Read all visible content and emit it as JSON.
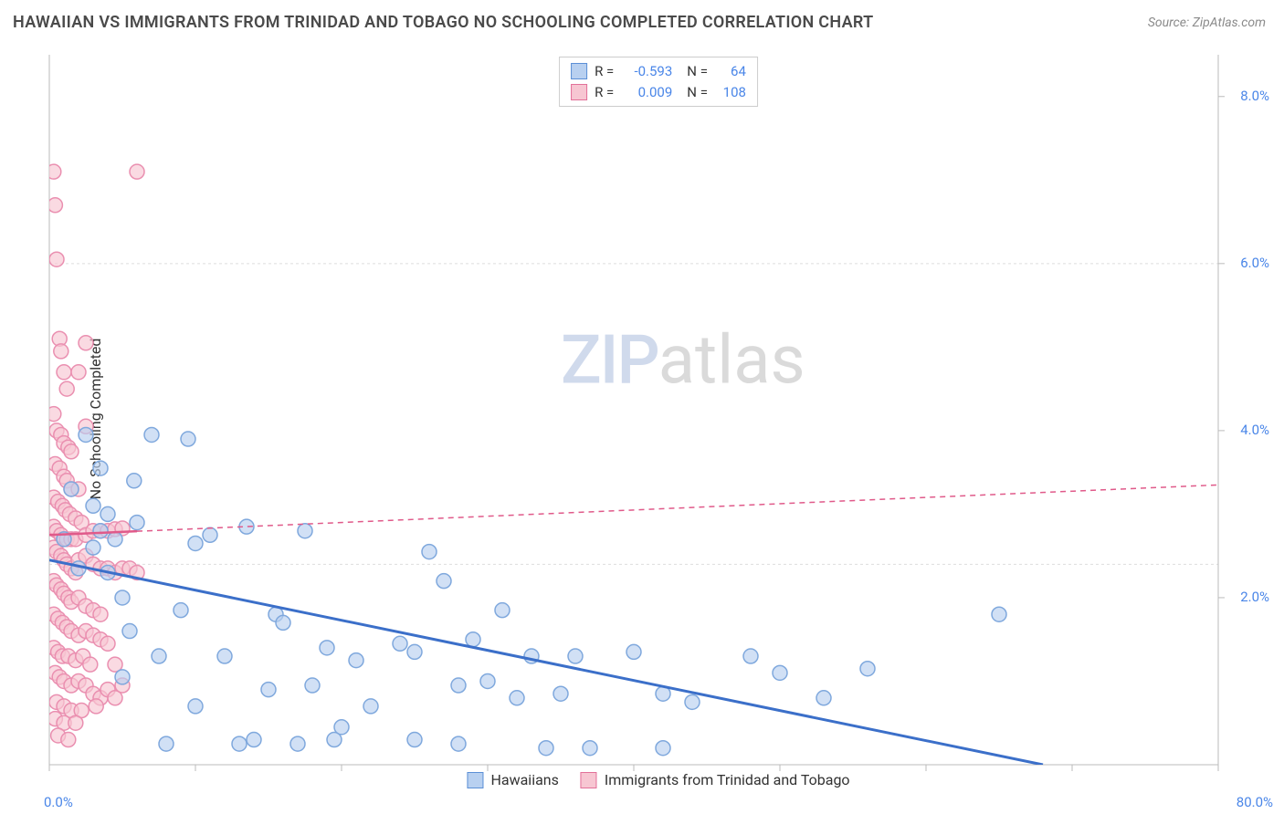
{
  "header": {
    "title": "HAWAIIAN VS IMMIGRANTS FROM TRINIDAD AND TOBAGO NO SCHOOLING COMPLETED CORRELATION CHART",
    "source": "Source: ZipAtlas.com"
  },
  "chart": {
    "type": "scatter",
    "ylabel": "No Schooling Completed",
    "xlim": [
      0,
      80
    ],
    "ylim": [
      0,
      8.5
    ],
    "x_ticks": [
      0,
      10,
      20,
      30,
      40,
      50,
      60,
      70,
      80
    ],
    "y_gridlines": [
      2.4,
      6.0
    ],
    "y_labels": [
      {
        "val": 2.0,
        "text": "2.0%"
      },
      {
        "val": 4.0,
        "text": "4.0%"
      },
      {
        "val": 6.0,
        "text": "6.0%"
      },
      {
        "val": 8.0,
        "text": "8.0%"
      }
    ],
    "x_axis_labels": {
      "left": "0.0%",
      "right": "80.0%"
    },
    "background_color": "#ffffff",
    "grid_color": "#dddddd",
    "axis_color": "#bbbbbb",
    "marker_radius": 8,
    "marker_stroke_width": 1.5,
    "series": [
      {
        "name": "Hawaiians",
        "fill": "#b8d0f0",
        "stroke": "#7fa8dd",
        "swatch_fill": "#b8d0f0",
        "swatch_stroke": "#5b8fd6",
        "line_color": "#3b6fc9",
        "line_width": 3,
        "line_dash": "none",
        "trend": {
          "x1": 0,
          "y1": 2.45,
          "x2": 68,
          "y2": 0.0
        },
        "points": [
          [
            1,
            2.7
          ],
          [
            1.5,
            3.3
          ],
          [
            2,
            2.35
          ],
          [
            2.5,
            3.95
          ],
          [
            3,
            2.6
          ],
          [
            3,
            3.1
          ],
          [
            3.5,
            2.8
          ],
          [
            3.5,
            3.55
          ],
          [
            4,
            2.3
          ],
          [
            4,
            3.0
          ],
          [
            4.5,
            2.7
          ],
          [
            5,
            1.05
          ],
          [
            5,
            2.0
          ],
          [
            5.5,
            1.6
          ],
          [
            5.8,
            3.4
          ],
          [
            6,
            2.9
          ],
          [
            7,
            3.95
          ],
          [
            7.5,
            1.3
          ],
          [
            8,
            0.25
          ],
          [
            9,
            1.85
          ],
          [
            9.5,
            3.9
          ],
          [
            10,
            2.65
          ],
          [
            10,
            0.7
          ],
          [
            11,
            2.75
          ],
          [
            12,
            1.3
          ],
          [
            13,
            0.25
          ],
          [
            13.5,
            2.85
          ],
          [
            14,
            0.3
          ],
          [
            15,
            0.9
          ],
          [
            15.5,
            1.8
          ],
          [
            16,
            1.7
          ],
          [
            17,
            0.25
          ],
          [
            17.5,
            2.8
          ],
          [
            18,
            0.95
          ],
          [
            19,
            1.4
          ],
          [
            19.5,
            0.3
          ],
          [
            20,
            0.45
          ],
          [
            21,
            1.25
          ],
          [
            22,
            0.7
          ],
          [
            24,
            1.45
          ],
          [
            25,
            0.3
          ],
          [
            25,
            1.35
          ],
          [
            26,
            2.55
          ],
          [
            27,
            2.2
          ],
          [
            28,
            0.25
          ],
          [
            28,
            0.95
          ],
          [
            29,
            1.5
          ],
          [
            30,
            1.0
          ],
          [
            31,
            1.85
          ],
          [
            32,
            0.8
          ],
          [
            33,
            1.3
          ],
          [
            34,
            0.2
          ],
          [
            35,
            0.85
          ],
          [
            36,
            1.3
          ],
          [
            37,
            0.2
          ],
          [
            40,
            1.35
          ],
          [
            42,
            0.85
          ],
          [
            42,
            0.2
          ],
          [
            44,
            0.75
          ],
          [
            48,
            1.3
          ],
          [
            50,
            1.1
          ],
          [
            53,
            0.8
          ],
          [
            56,
            1.15
          ],
          [
            65,
            1.8
          ]
        ]
      },
      {
        "name": "Immigrants from Trinidad and Tobago",
        "fill": "#f7c6d2",
        "stroke": "#ea8fb0",
        "swatch_fill": "#f7c6d2",
        "swatch_stroke": "#e27099",
        "line_color": "#e05a8a",
        "line_width": 2.5,
        "line_dash": "6,5",
        "trend": {
          "x1": 0,
          "y1": 2.75,
          "x2": 80,
          "y2": 3.35
        },
        "trend_solid_until": 6,
        "points": [
          [
            0.3,
            7.1
          ],
          [
            0.4,
            6.7
          ],
          [
            0.5,
            6.05
          ],
          [
            0.7,
            5.1
          ],
          [
            0.8,
            4.95
          ],
          [
            1.0,
            4.7
          ],
          [
            1.2,
            4.5
          ],
          [
            0.3,
            4.2
          ],
          [
            0.5,
            4.0
          ],
          [
            0.8,
            3.95
          ],
          [
            1.0,
            3.85
          ],
          [
            1.3,
            3.8
          ],
          [
            1.5,
            3.75
          ],
          [
            0.4,
            3.6
          ],
          [
            0.7,
            3.55
          ],
          [
            1.0,
            3.45
          ],
          [
            1.2,
            3.4
          ],
          [
            1.5,
            3.3
          ],
          [
            2.0,
            3.3
          ],
          [
            0.3,
            3.2
          ],
          [
            0.6,
            3.15
          ],
          [
            0.9,
            3.1
          ],
          [
            1.1,
            3.05
          ],
          [
            1.4,
            3.0
          ],
          [
            1.8,
            2.95
          ],
          [
            2.2,
            2.9
          ],
          [
            0.3,
            2.85
          ],
          [
            0.5,
            2.8
          ],
          [
            0.8,
            2.75
          ],
          [
            1.0,
            2.7
          ],
          [
            1.2,
            2.7
          ],
          [
            1.5,
            2.7
          ],
          [
            1.8,
            2.7
          ],
          [
            2.5,
            2.75
          ],
          [
            3.0,
            2.8
          ],
          [
            3.5,
            2.8
          ],
          [
            4.0,
            2.8
          ],
          [
            4.5,
            2.82
          ],
          [
            5.0,
            2.83
          ],
          [
            0.3,
            2.6
          ],
          [
            0.5,
            2.55
          ],
          [
            0.8,
            2.5
          ],
          [
            1.0,
            2.45
          ],
          [
            1.2,
            2.4
          ],
          [
            1.5,
            2.35
          ],
          [
            1.8,
            2.3
          ],
          [
            2.0,
            2.45
          ],
          [
            2.5,
            2.5
          ],
          [
            3.0,
            2.4
          ],
          [
            3.5,
            2.35
          ],
          [
            4.0,
            2.35
          ],
          [
            4.5,
            2.3
          ],
          [
            5.0,
            2.35
          ],
          [
            5.5,
            2.35
          ],
          [
            6.0,
            2.3
          ],
          [
            0.3,
            2.2
          ],
          [
            0.5,
            2.15
          ],
          [
            0.8,
            2.1
          ],
          [
            1.0,
            2.05
          ],
          [
            1.3,
            2.0
          ],
          [
            1.5,
            1.95
          ],
          [
            2.0,
            2.0
          ],
          [
            2.5,
            1.9
          ],
          [
            3.0,
            1.85
          ],
          [
            3.5,
            1.8
          ],
          [
            0.3,
            1.8
          ],
          [
            0.6,
            1.75
          ],
          [
            0.9,
            1.7
          ],
          [
            1.2,
            1.65
          ],
          [
            1.5,
            1.6
          ],
          [
            2.0,
            1.55
          ],
          [
            2.5,
            1.6
          ],
          [
            3.0,
            1.55
          ],
          [
            3.5,
            1.5
          ],
          [
            4.0,
            1.45
          ],
          [
            0.3,
            1.4
          ],
          [
            0.6,
            1.35
          ],
          [
            0.9,
            1.3
          ],
          [
            1.3,
            1.3
          ],
          [
            1.8,
            1.25
          ],
          [
            2.3,
            1.3
          ],
          [
            2.8,
            1.2
          ],
          [
            4.5,
            1.2
          ],
          [
            0.4,
            1.1
          ],
          [
            0.7,
            1.05
          ],
          [
            1.0,
            1.0
          ],
          [
            1.5,
            0.95
          ],
          [
            2.0,
            1.0
          ],
          [
            2.5,
            0.95
          ],
          [
            3.0,
            0.85
          ],
          [
            3.5,
            0.8
          ],
          [
            4.0,
            0.9
          ],
          [
            4.5,
            0.8
          ],
          [
            5.0,
            0.95
          ],
          [
            0.5,
            0.75
          ],
          [
            1.0,
            0.7
          ],
          [
            1.5,
            0.65
          ],
          [
            2.2,
            0.65
          ],
          [
            0.4,
            0.55
          ],
          [
            1.0,
            0.5
          ],
          [
            1.8,
            0.5
          ],
          [
            3.2,
            0.7
          ],
          [
            0.6,
            0.35
          ],
          [
            1.3,
            0.3
          ],
          [
            6.0,
            7.1
          ],
          [
            2.5,
            5.05
          ],
          [
            2.0,
            4.7
          ],
          [
            2.5,
            4.05
          ]
        ]
      }
    ],
    "correlation_box": [
      {
        "series_index": 0,
        "r_label": "R =",
        "r": "-0.593",
        "n_label": "N =",
        "n": "64"
      },
      {
        "series_index": 1,
        "r_label": "R =",
        "r": "0.009",
        "n_label": "N =",
        "n": "108"
      }
    ],
    "watermark": {
      "zip": "ZIP",
      "atlas": "atlas"
    }
  }
}
